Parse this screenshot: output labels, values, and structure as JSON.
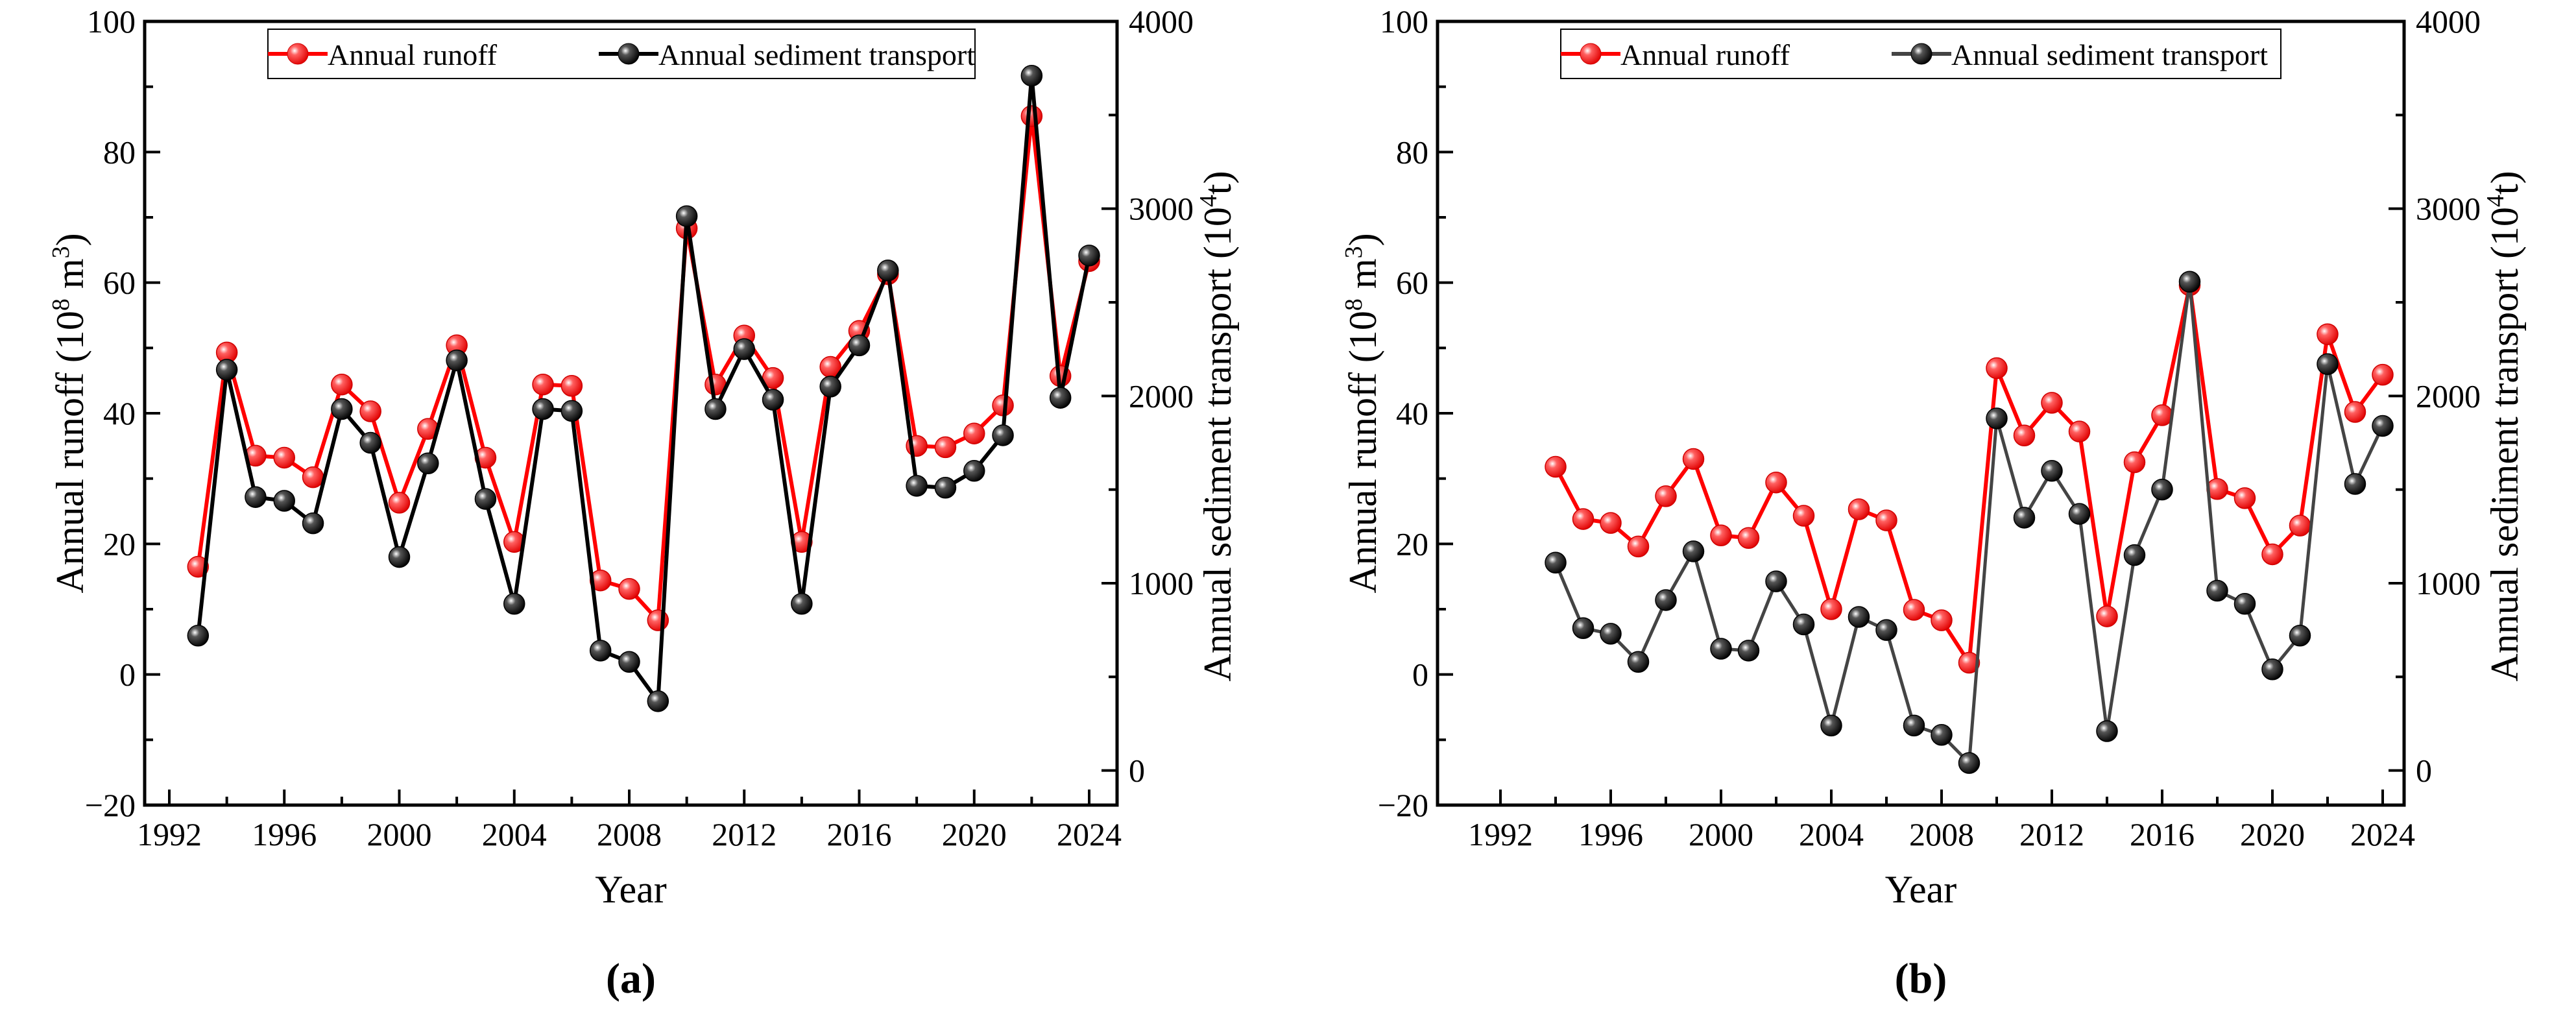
{
  "colors": {
    "runoff": "#ff0000",
    "sediment": "#000000",
    "sediment_line_b": "#444444"
  },
  "chart_data": [
    {
      "type": "line",
      "panel_label": "(a)",
      "xlabel": "Year",
      "ylabel": "Annual runoff (10^8 m^3)",
      "ylabel_parts": {
        "main": "Annual runoff (10",
        "exp1": "8",
        "mid": " m",
        "exp2": "3",
        "end": ")"
      },
      "y2label_parts": {
        "main": "Annual sediment transport (10",
        "exp1": "4",
        "end": "t)"
      },
      "xlim": [
        1990,
        2025
      ],
      "ylim": [
        -20,
        100
      ],
      "y2lim": [
        -130,
        4000
      ],
      "xticks": [
        1992,
        1996,
        2000,
        2004,
        2008,
        2012,
        2016,
        2020,
        2024
      ],
      "yticks": [
        -20,
        0,
        20,
        40,
        60,
        80,
        100
      ],
      "y2ticks": [
        0,
        1000,
        2000,
        3000,
        4000
      ],
      "legend": [
        "Annual runoff",
        "Annual sediment transport"
      ],
      "legend_placement": "top",
      "x": [
        1993,
        1994,
        1995,
        1996,
        1997,
        1998,
        1999,
        2000,
        2001,
        2002,
        2003,
        2004,
        2005,
        2006,
        2007,
        2008,
        2009,
        2010,
        2011,
        2012,
        2013,
        2014,
        2015,
        2016,
        2017,
        2018,
        2019,
        2020,
        2021,
        2022,
        2023,
        2024
      ],
      "series": [
        {
          "name": "Annual runoff",
          "axis": "left",
          "values": [
            16.5,
            49.3,
            33.5,
            33.2,
            30.2,
            44.4,
            40.3,
            26.3,
            37.6,
            50.4,
            33.2,
            20.3,
            44.4,
            44.2,
            14.4,
            13.1,
            8.3,
            68.3,
            44.4,
            51.9,
            45.4,
            20.3,
            47.1,
            52.6,
            61.3,
            35.0,
            34.8,
            36.9,
            41.2,
            85.5,
            45.7,
            63.3
          ]
        },
        {
          "name": "Annual sediment transport",
          "axis": "right",
          "values": [
            720,
            2140,
            1460,
            1440,
            1320,
            1930,
            1750,
            1140,
            1640,
            2190,
            1450,
            890,
            1930,
            1920,
            640,
            580,
            370,
            2960,
            1930,
            2250,
            1980,
            890,
            2050,
            2270,
            2670,
            1520,
            1510,
            1600,
            1790,
            3710,
            1990,
            2750
          ]
        }
      ]
    },
    {
      "type": "line",
      "panel_label": "(b)",
      "xlabel": "Year",
      "ylabel": "Annual runoff (10^8 m^3)",
      "ylabel_parts": {
        "main": "Annual runoff (10",
        "exp1": "8",
        "mid": " m",
        "exp2": "3",
        "end": ")"
      },
      "y2label_parts": {
        "main": "Annual sediment transport (10",
        "exp1": "4",
        "end": "t)"
      },
      "xlim": [
        1990,
        2025
      ],
      "ylim": [
        -20,
        100
      ],
      "y2lim": [
        -130,
        4000
      ],
      "xticks": [
        1992,
        1996,
        2000,
        2004,
        2008,
        2012,
        2016,
        2020,
        2024
      ],
      "yticks": [
        -20,
        0,
        20,
        40,
        60,
        80,
        100
      ],
      "y2ticks": [
        0,
        1000,
        2000,
        3000,
        4000
      ],
      "legend": [
        "Annual runoff",
        "Annual sediment transport"
      ],
      "legend_placement": "top",
      "x": [
        1994,
        1995,
        1996,
        1997,
        1998,
        1999,
        2000,
        2001,
        2002,
        2003,
        2004,
        2005,
        2006,
        2007,
        2008,
        2009,
        2010,
        2011,
        2012,
        2013,
        2014,
        2015,
        2016,
        2017,
        2018,
        2019,
        2020,
        2021,
        2022,
        2023,
        2024
      ],
      "series": [
        {
          "name": "Annual runoff",
          "axis": "left",
          "values": [
            31.8,
            23.8,
            23.2,
            19.6,
            27.3,
            33.0,
            21.3,
            20.9,
            29.4,
            24.3,
            10.0,
            25.3,
            23.6,
            9.9,
            8.3,
            1.8,
            46.9,
            36.6,
            41.6,
            37.2,
            8.9,
            32.5,
            39.7,
            59.6,
            28.4,
            27.0,
            18.4,
            22.8,
            52.1,
            40.2,
            45.9
          ]
        },
        {
          "name": "Annual sediment transport",
          "axis": "right",
          "values": [
            1110,
            760,
            730,
            580,
            910,
            1170,
            650,
            640,
            1010,
            780,
            240,
            820,
            750,
            240,
            190,
            40,
            1880,
            1350,
            1600,
            1370,
            210,
            1150,
            1500,
            2610,
            960,
            890,
            540,
            720,
            2170,
            1530,
            1840
          ]
        }
      ]
    }
  ]
}
